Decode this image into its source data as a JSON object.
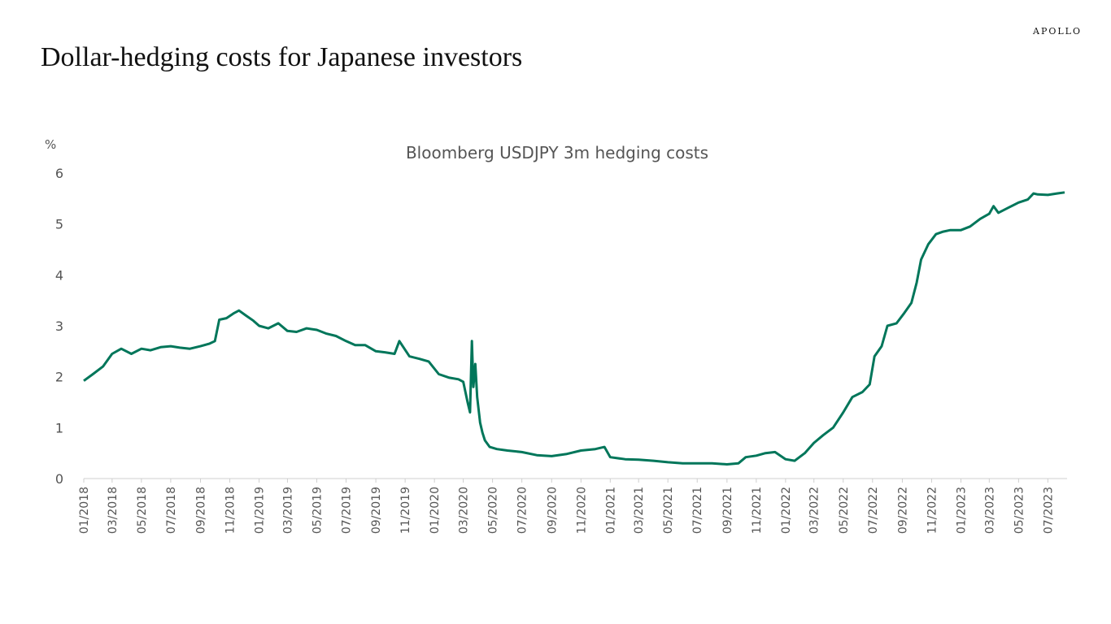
{
  "header": {
    "brand": "APOLLO",
    "title": "Dollar-hedging costs for Japanese investors"
  },
  "chart_data": {
    "type": "line",
    "title": "Bloomberg USDJPY 3m hedging costs",
    "ylabel": "%",
    "xlabel": "",
    "ylim": [
      0,
      6
    ],
    "yticks": [
      0,
      1,
      2,
      3,
      4,
      5,
      6
    ],
    "xlim": [
      "2018-01-01",
      "2023-08-10"
    ],
    "xticks": [
      "01/2018",
      "03/2018",
      "05/2018",
      "07/2018",
      "09/2018",
      "11/2018",
      "01/2019",
      "03/2019",
      "05/2019",
      "07/2019",
      "09/2019",
      "11/2019",
      "01/2020",
      "03/2020",
      "05/2020",
      "07/2020",
      "09/2020",
      "11/2020",
      "01/2021",
      "03/2021",
      "05/2021",
      "07/2021",
      "09/2021",
      "11/2021",
      "01/2022",
      "03/2022",
      "05/2022",
      "07/2022",
      "09/2022",
      "11/2022",
      "01/2023",
      "03/2023",
      "05/2023",
      "07/2023"
    ],
    "grid": false,
    "color": "#00765A",
    "series": [
      {
        "x": [
          "2018-01-01",
          "2018-01-20",
          "2018-02-10",
          "2018-03-01",
          "2018-03-20",
          "2018-04-10",
          "2018-05-01",
          "2018-05-20",
          "2018-06-10",
          "2018-07-01",
          "2018-07-20",
          "2018-08-10",
          "2018-09-01",
          "2018-09-20",
          "2018-10-01",
          "2018-10-10",
          "2018-10-25",
          "2018-11-10",
          "2018-11-20",
          "2018-12-05",
          "2018-12-20",
          "2019-01-01",
          "2019-01-20",
          "2019-02-10",
          "2019-03-01",
          "2019-03-20",
          "2019-04-10",
          "2019-05-01",
          "2019-05-20",
          "2019-06-10",
          "2019-07-01",
          "2019-07-20",
          "2019-08-10",
          "2019-09-01",
          "2019-09-20",
          "2019-10-10",
          "2019-10-20",
          "2019-11-10",
          "2019-12-01",
          "2019-12-20",
          "2020-01-10",
          "2020-02-01",
          "2020-02-20",
          "2020-03-01",
          "2020-03-10",
          "2020-03-15",
          "2020-03-19",
          "2020-03-22",
          "2020-03-26",
          "2020-03-30",
          "2020-04-05",
          "2020-04-10",
          "2020-04-15",
          "2020-04-25",
          "2020-05-10",
          "2020-06-01",
          "2020-07-01",
          "2020-08-01",
          "2020-09-01",
          "2020-10-01",
          "2020-11-01",
          "2020-12-01",
          "2020-12-20",
          "2021-01-01",
          "2021-02-01",
          "2021-03-01",
          "2021-04-01",
          "2021-05-01",
          "2021-06-01",
          "2021-07-01",
          "2021-08-01",
          "2021-09-01",
          "2021-09-25",
          "2021-10-10",
          "2021-11-01",
          "2021-11-20",
          "2021-12-10",
          "2022-01-01",
          "2022-01-20",
          "2022-02-10",
          "2022-03-01",
          "2022-03-20",
          "2022-04-10",
          "2022-05-01",
          "2022-05-20",
          "2022-06-10",
          "2022-06-25",
          "2022-07-05",
          "2022-07-20",
          "2022-08-01",
          "2022-08-20",
          "2022-09-05",
          "2022-09-20",
          "2022-10-01",
          "2022-10-10",
          "2022-10-25",
          "2022-11-10",
          "2022-11-25",
          "2022-12-10",
          "2023-01-01",
          "2023-01-20",
          "2023-02-10",
          "2023-03-01",
          "2023-03-10",
          "2023-03-20",
          "2023-04-10",
          "2023-05-01",
          "2023-05-20",
          "2023-06-01",
          "2023-06-10",
          "2023-07-01",
          "2023-07-20",
          "2023-08-05"
        ],
        "values": [
          1.92,
          2.05,
          2.2,
          2.45,
          2.55,
          2.45,
          2.55,
          2.52,
          2.58,
          2.6,
          2.57,
          2.55,
          2.6,
          2.65,
          2.7,
          3.12,
          3.15,
          3.25,
          3.3,
          3.2,
          3.1,
          3.0,
          2.95,
          3.05,
          2.9,
          2.88,
          2.95,
          2.92,
          2.85,
          2.8,
          2.7,
          2.62,
          2.62,
          2.5,
          2.48,
          2.45,
          2.7,
          2.4,
          2.35,
          2.3,
          2.05,
          1.98,
          1.95,
          1.9,
          1.5,
          1.3,
          2.7,
          1.8,
          2.25,
          1.6,
          1.1,
          0.9,
          0.75,
          0.62,
          0.58,
          0.55,
          0.52,
          0.46,
          0.44,
          0.48,
          0.55,
          0.58,
          0.62,
          0.42,
          0.38,
          0.37,
          0.35,
          0.32,
          0.3,
          0.3,
          0.3,
          0.28,
          0.3,
          0.42,
          0.45,
          0.5,
          0.52,
          0.38,
          0.35,
          0.5,
          0.7,
          0.85,
          1.0,
          1.3,
          1.6,
          1.7,
          1.85,
          2.4,
          2.6,
          3.0,
          3.05,
          3.25,
          3.45,
          3.85,
          4.3,
          4.6,
          4.8,
          4.85,
          4.88,
          4.88,
          4.95,
          5.1,
          5.2,
          5.35,
          5.22,
          5.32,
          5.42,
          5.48,
          5.6,
          5.58,
          5.57,
          5.6,
          5.62
        ]
      }
    ]
  }
}
